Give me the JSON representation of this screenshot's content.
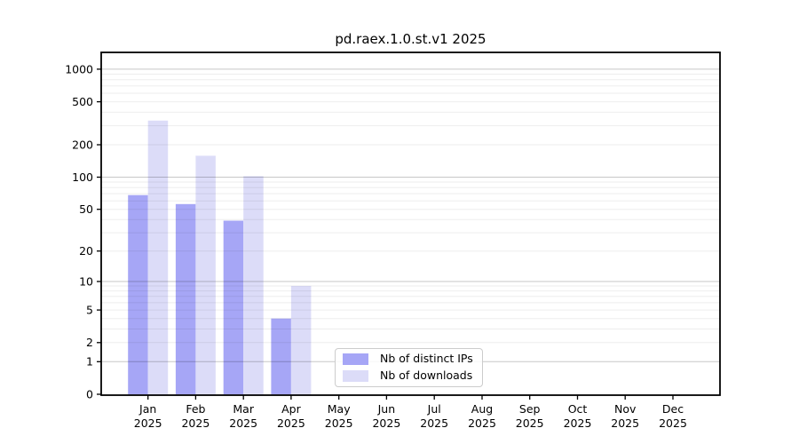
{
  "title": "pd.raex.1.0.st.v1 2025",
  "chart_data": {
    "type": "bar",
    "title": "pd.raex.1.0.st.v1 2025",
    "x_axis": {
      "categories": [
        "Jan",
        "Feb",
        "Mar",
        "Apr",
        "May",
        "Jun",
        "Jul",
        "Aug",
        "Sep",
        "Oct",
        "Nov",
        "Dec"
      ],
      "year_label": "2025"
    },
    "y_axis": {
      "scale": "log1p",
      "ticks": [
        1000,
        500,
        200,
        100,
        50,
        20,
        10,
        5,
        2,
        1,
        0
      ],
      "range": [
        0,
        1430
      ]
    },
    "series": [
      {
        "name": "Nb of distinct IPs",
        "color": "#a6a6f6",
        "values": [
          68,
          56,
          39,
          4,
          null,
          null,
          null,
          null,
          null,
          null,
          null,
          null
        ]
      },
      {
        "name": "Nb of downloads",
        "color": "#dcdcf8",
        "values": [
          335,
          158,
          102,
          9,
          null,
          null,
          null,
          null,
          null,
          null,
          null,
          null
        ]
      }
    ],
    "grid": true,
    "legend_position": "lower center",
    "grid_major_values": [
      1,
      10,
      100,
      1000
    ]
  }
}
